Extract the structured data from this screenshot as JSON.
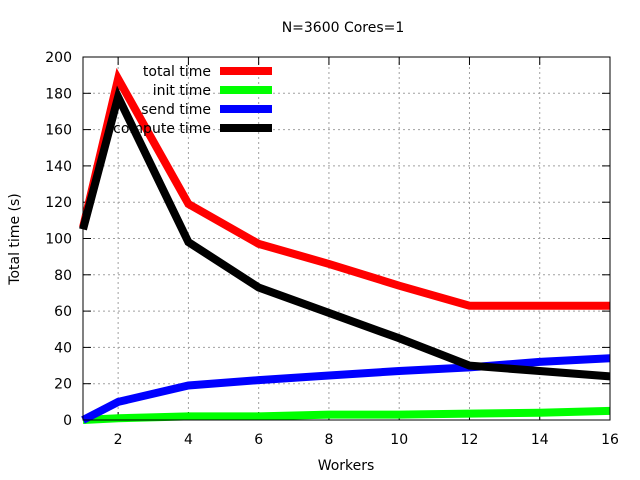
{
  "chart_data": {
    "type": "line",
    "title": "N=3600 Cores=1",
    "xlabel": "Workers",
    "ylabel": "Total time (s)",
    "xlim": [
      1,
      16
    ],
    "ylim": [
      0,
      200
    ],
    "xticks": [
      2,
      4,
      6,
      8,
      10,
      12,
      14,
      16
    ],
    "yticks": [
      0,
      20,
      40,
      60,
      80,
      100,
      120,
      140,
      160,
      180,
      200
    ],
    "grid": true,
    "legend_position": "top-left",
    "series": [
      {
        "name": "total time",
        "color": "#ff0000",
        "x": [
          1,
          2,
          4,
          6,
          8,
          10,
          12,
          14,
          16
        ],
        "y": [
          106,
          188,
          119,
          97,
          86,
          74,
          63,
          63,
          63
        ]
      },
      {
        "name": "init time",
        "color": "#00ff00",
        "x": [
          1,
          2,
          4,
          6,
          8,
          10,
          12,
          14,
          16
        ],
        "y": [
          0,
          1,
          2,
          2,
          3,
          3,
          3.5,
          4,
          5
        ]
      },
      {
        "name": "send time",
        "color": "#0000ff",
        "x": [
          1,
          2,
          4,
          6,
          8,
          10,
          12,
          14,
          16
        ],
        "y": [
          0,
          10,
          19,
          22,
          24.5,
          27,
          29,
          32,
          34
        ]
      },
      {
        "name": "compute time",
        "color": "#000000",
        "x": [
          1,
          2,
          4,
          6,
          8,
          10,
          12,
          14,
          16
        ],
        "y": [
          105,
          178,
          98,
          73,
          59,
          45,
          30,
          27,
          24
        ]
      }
    ]
  }
}
